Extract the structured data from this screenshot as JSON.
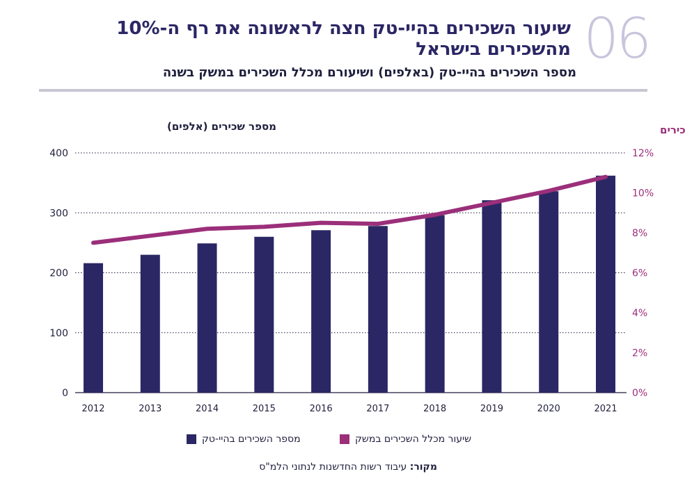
{
  "header": {
    "number": "06",
    "title": "שיעור השכירים בהיי-טק חצה לראשונה את רף ה-10% מהשכירים בישראל",
    "subtitle": "מספר השכירים בהיי-טק (באלפים) ושיעורם מכלל השכירים במשק בשנה"
  },
  "chart_data": {
    "type": "bar",
    "categories": [
      "2012",
      "2013",
      "2014",
      "2015",
      "2016",
      "2017",
      "2018",
      "2019",
      "2020",
      "2021"
    ],
    "series": [
      {
        "name": "מספר השכירים בהיי-טק",
        "type": "bar",
        "axis": "left",
        "color": "#2b2765",
        "values": [
          216,
          230,
          249,
          260,
          271,
          278,
          296,
          321,
          336,
          362
        ]
      },
      {
        "name": "שיעור מכלל השכירים במשק",
        "type": "line",
        "axis": "right",
        "color": "#9b2f7a",
        "values": [
          7.5,
          7.85,
          8.2,
          8.3,
          8.5,
          8.45,
          8.9,
          9.5,
          10.1,
          10.8
        ]
      }
    ],
    "left_axis": {
      "label": "מספר שכירים (אלפים)",
      "ylim": [
        0,
        400
      ],
      "ticks": [
        "0",
        "100",
        "200",
        "300",
        "400"
      ]
    },
    "right_axis": {
      "label": "שיעור מהשכירים",
      "ylim": [
        0,
        12
      ],
      "ticks": [
        "0%",
        "2%",
        "4%",
        "6%",
        "8%",
        "10%",
        "12%"
      ]
    },
    "grid": true,
    "legend_position": "bottom"
  },
  "legend": {
    "bar_label": "מספר השכירים בהיי-טק",
    "line_label": "שיעור מכלל השכירים במשק"
  },
  "source": {
    "label": "מקור:",
    "text": "עיבוד רשות החדשנות לנתוני הלמ\"ס"
  }
}
